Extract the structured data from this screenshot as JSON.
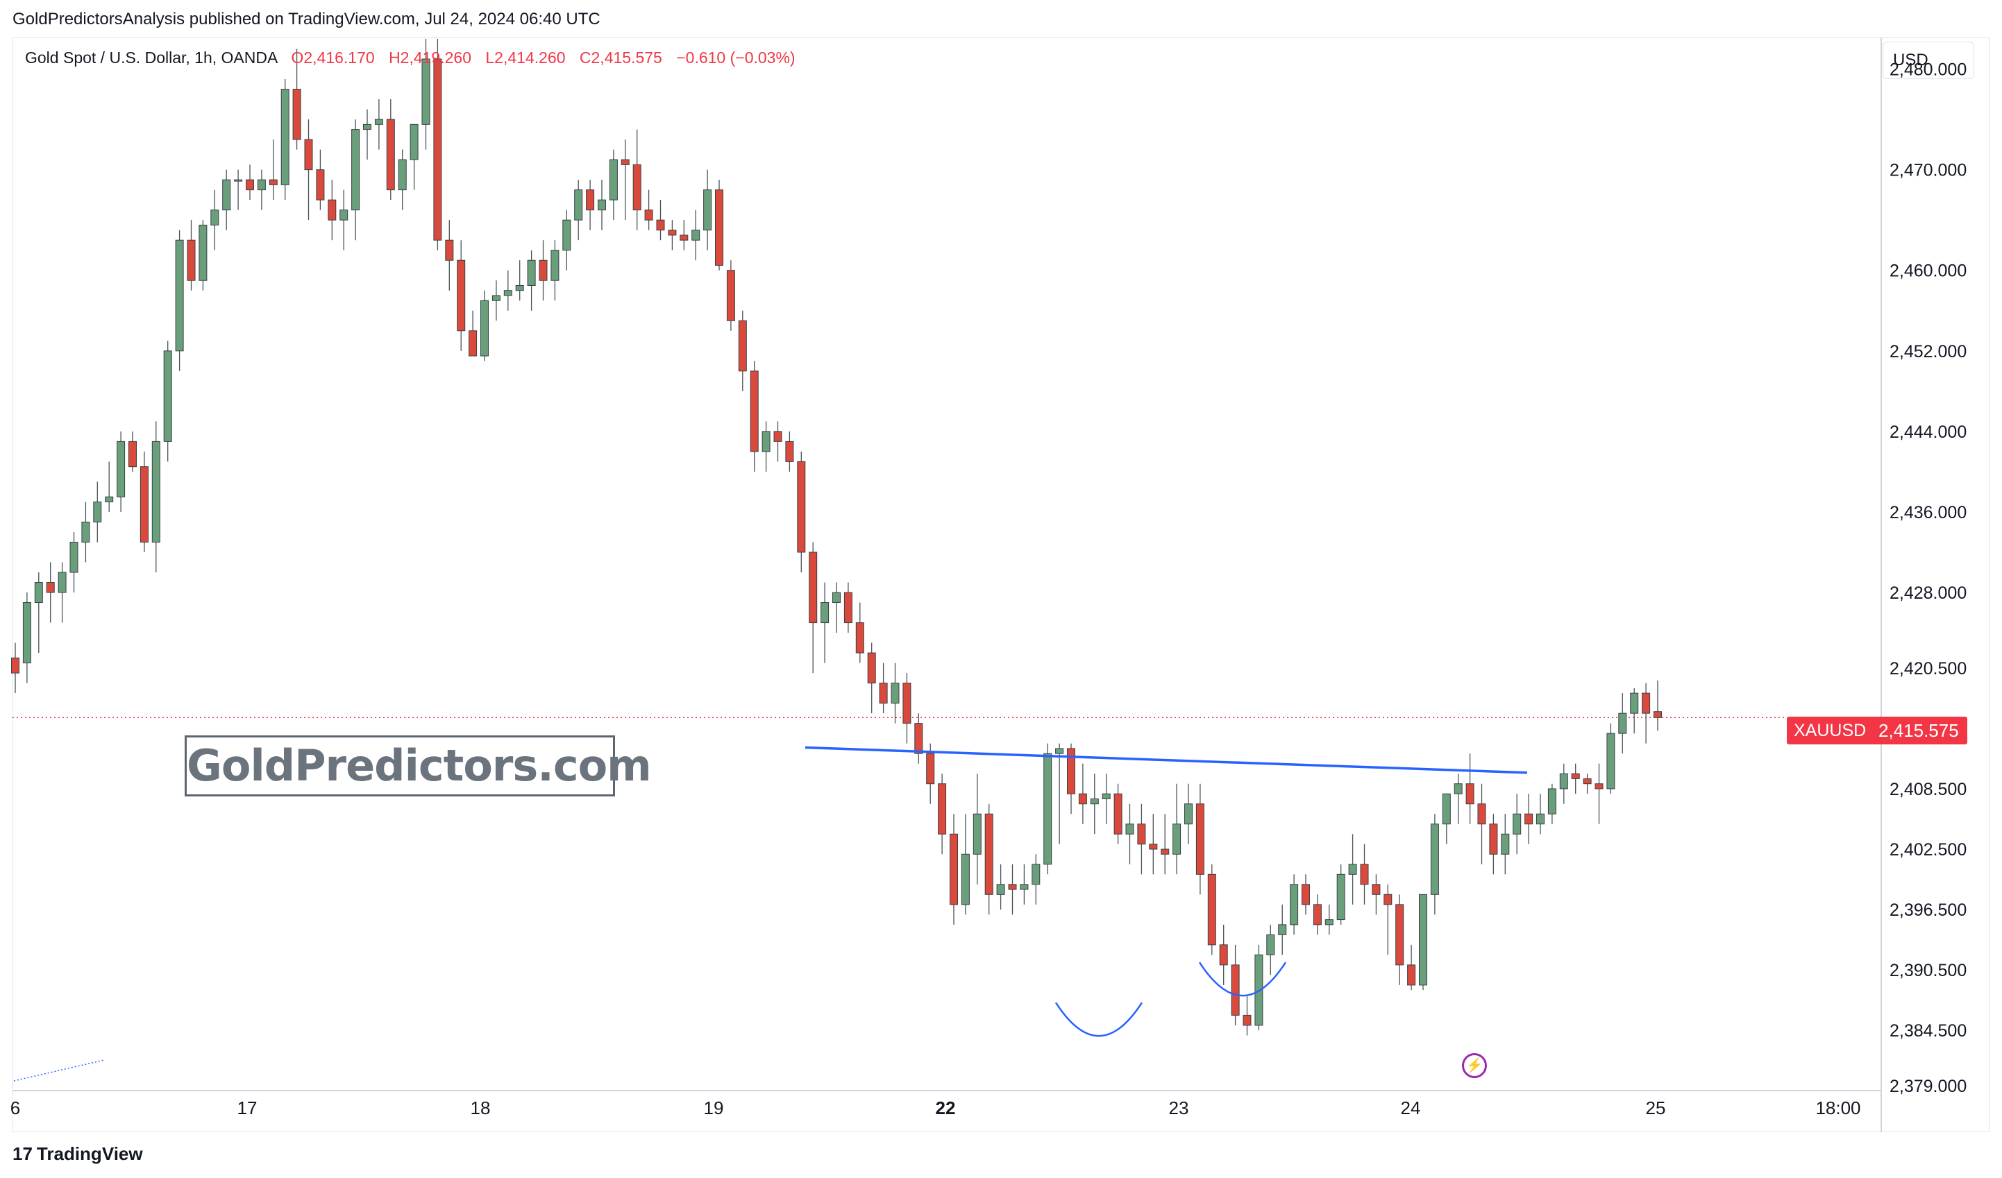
{
  "header": {
    "published": "GoldPredictorsAnalysis published on TradingView.com, Jul 24, 2024 06:40 UTC"
  },
  "legend": {
    "symbol": "Gold Spot / U.S. Dollar, 1h, OANDA",
    "open": "O2,416.170",
    "high": "H2,419.260",
    "low": "L2,414.260",
    "close": "C2,415.575",
    "change": "−0.610 (−0.03%)"
  },
  "watermark": "GoldPredictors.com",
  "currency": "USD",
  "price_label": {
    "symbol": "XAUUSD",
    "price": "2,415.575"
  },
  "footer": {
    "brand": "TradingView",
    "logo_glyph": "17"
  },
  "colors": {
    "up": "#6a9f7c",
    "down": "#d94a3d",
    "neckline": "#2962ff",
    "price_line": "#f23645",
    "signal": "#9c27b0"
  },
  "chart_data": {
    "type": "candlestick",
    "instrument": "XAUUSD",
    "timeframe": "1h",
    "y_ticks": [
      "2,480.000",
      "2,470.000",
      "2,460.000",
      "2,452.000",
      "2,444.000",
      "2,436.000",
      "2,428.000",
      "2,420.500",
      "2,408.500",
      "2,402.500",
      "2,396.500",
      "2,390.500",
      "2,384.500",
      "2,379.000"
    ],
    "y_tick_values": [
      2480,
      2470,
      2460,
      2452,
      2444,
      2436,
      2428,
      2420.5,
      2408.5,
      2402.5,
      2396.5,
      2390.5,
      2384.5,
      2379
    ],
    "x_ticks": [
      "6",
      "17",
      "18",
      "19",
      "22",
      "23",
      "24",
      "25",
      "18:00"
    ],
    "x_tick_bold": "22",
    "ylim": [
      2379,
      2483
    ],
    "current_price": 2415.575,
    "neckline": {
      "start": [
        0,
        2412.6
      ],
      "end": [
        91,
        2410.1
      ]
    },
    "shoulders": [
      {
        "center": 48.5,
        "low": 2384.5
      },
      {
        "center": 65.5,
        "low": 2388.5
      }
    ],
    "candles": [
      [
        2421.5,
        2423.0,
        2418.0,
        2420.0
      ],
      [
        2421.0,
        2428.0,
        2419.0,
        2427.0
      ],
      [
        2427.0,
        2430.0,
        2422.0,
        2429.0
      ],
      [
        2429.0,
        2431.0,
        2425.0,
        2428.0
      ],
      [
        2428.0,
        2431.0,
        2425.0,
        2430.0
      ],
      [
        2430.0,
        2434.0,
        2428.0,
        2433.0
      ],
      [
        2433.0,
        2437.0,
        2431.0,
        2435.0
      ],
      [
        2435.0,
        2439.0,
        2433.0,
        2437.0
      ],
      [
        2437.0,
        2441.0,
        2436.0,
        2437.5
      ],
      [
        2437.5,
        2444.0,
        2436.0,
        2443.0
      ],
      [
        2443.0,
        2444.0,
        2440.0,
        2440.5
      ],
      [
        2440.5,
        2442.0,
        2432.0,
        2433.0
      ],
      [
        2433.0,
        2445.0,
        2430.0,
        2443.0
      ],
      [
        2443.0,
        2453.0,
        2441.0,
        2452.0
      ],
      [
        2452.0,
        2464.0,
        2450.0,
        2463.0
      ],
      [
        2463.0,
        2465.0,
        2458.0,
        2459.0
      ],
      [
        2459.0,
        2465.0,
        2458.0,
        2464.5
      ],
      [
        2464.5,
        2468.0,
        2462.0,
        2466.0
      ],
      [
        2466.0,
        2470.0,
        2464.0,
        2469.0
      ],
      [
        2469.0,
        2470.0,
        2466.0,
        2469.0
      ],
      [
        2469.0,
        2470.5,
        2467.0,
        2468.0
      ],
      [
        2468.0,
        2470.0,
        2466.0,
        2469.0
      ],
      [
        2469.0,
        2473.0,
        2467.0,
        2468.5
      ],
      [
        2468.5,
        2479.0,
        2467.0,
        2478.0
      ],
      [
        2478.0,
        2482.0,
        2472.0,
        2473.0
      ],
      [
        2473.0,
        2475.0,
        2465.0,
        2470.0
      ],
      [
        2470.0,
        2472.0,
        2466.0,
        2467.0
      ],
      [
        2467.0,
        2469.0,
        2463.0,
        2465.0
      ],
      [
        2465.0,
        2468.0,
        2462.0,
        2466.0
      ],
      [
        2466.0,
        2475.0,
        2463.0,
        2474.0
      ],
      [
        2474.0,
        2476.0,
        2471.0,
        2474.5
      ],
      [
        2474.5,
        2477.0,
        2472.0,
        2475.0
      ],
      [
        2475.0,
        2477.0,
        2467.0,
        2468.0
      ],
      [
        2468.0,
        2472.0,
        2466.0,
        2471.0
      ],
      [
        2471.0,
        2474.0,
        2468.0,
        2474.5
      ],
      [
        2474.5,
        2483.0,
        2472.0,
        2481.0
      ],
      [
        2481.0,
        2483.0,
        2462.0,
        2463.0
      ],
      [
        2463.0,
        2465.0,
        2458.0,
        2461.0
      ],
      [
        2461.0,
        2463.0,
        2452.0,
        2454.0
      ],
      [
        2454.0,
        2456.0,
        2452.5,
        2451.5
      ],
      [
        2451.5,
        2458.0,
        2451.0,
        2457.0
      ],
      [
        2457.0,
        2459.0,
        2455.0,
        2457.5
      ],
      [
        2457.5,
        2460.0,
        2456.0,
        2458.0
      ],
      [
        2458.0,
        2461.0,
        2457.0,
        2458.5
      ],
      [
        2458.5,
        2462.0,
        2456.0,
        2461.0
      ],
      [
        2461.0,
        2463.0,
        2457.0,
        2459.0
      ],
      [
        2459.0,
        2463.0,
        2457.0,
        2462.0
      ],
      [
        2462.0,
        2466.0,
        2460.0,
        2465.0
      ],
      [
        2465.0,
        2469.0,
        2463.0,
        2468.0
      ],
      [
        2468.0,
        2469.0,
        2464.0,
        2466.0
      ],
      [
        2466.0,
        2469.0,
        2464.0,
        2467.0
      ],
      [
        2467.0,
        2472.0,
        2465.0,
        2471.0
      ],
      [
        2471.0,
        2473.0,
        2465.0,
        2470.5
      ],
      [
        2470.5,
        2474.0,
        2464.0,
        2466.0
      ],
      [
        2466.0,
        2468.0,
        2464.0,
        2465.0
      ],
      [
        2465.0,
        2467.0,
        2463.0,
        2464.0
      ],
      [
        2464.0,
        2465.0,
        2462.0,
        2463.5
      ],
      [
        2463.5,
        2465.0,
        2462.0,
        2463.0
      ],
      [
        2463.0,
        2466.0,
        2461.0,
        2464.0
      ],
      [
        2464.0,
        2470.0,
        2462.0,
        2468.0
      ],
      [
        2468.0,
        2469.0,
        2460.0,
        2460.5
      ],
      [
        2460.0,
        2461.0,
        2454.0,
        2455.0
      ],
      [
        2455.0,
        2456.0,
        2448.0,
        2450.0
      ],
      [
        2450.0,
        2451.0,
        2440.0,
        2442.0
      ],
      [
        2442.0,
        2445.0,
        2440.0,
        2444.0
      ],
      [
        2444.0,
        2445.0,
        2441.0,
        2443.0
      ],
      [
        2443.0,
        2444.0,
        2440.0,
        2441.0
      ],
      [
        2441.0,
        2442.0,
        2430.0,
        2432.0
      ],
      [
        2432.0,
        2433.0,
        2420.0,
        2425.0
      ],
      [
        2425.0,
        2429.0,
        2421.0,
        2427.0
      ],
      [
        2427.0,
        2429.0,
        2424.0,
        2428.0
      ],
      [
        2428.0,
        2429.0,
        2424.0,
        2425.0
      ],
      [
        2425.0,
        2427.0,
        2421.0,
        2422.0
      ],
      [
        2422.0,
        2423.0,
        2416.0,
        2419.0
      ],
      [
        2419.0,
        2421.0,
        2416.0,
        2417.0
      ],
      [
        2417.0,
        2421.0,
        2415.0,
        2419.0
      ],
      [
        2419.0,
        2420.0,
        2413.0,
        2415.0
      ],
      [
        2415.0,
        2416.0,
        2411.0,
        2412.0
      ],
      [
        2412.0,
        2413.0,
        2407.0,
        2409.0
      ],
      [
        2409.0,
        2410.0,
        2402.0,
        2404.0
      ],
      [
        2404.0,
        2406.0,
        2395.0,
        2397.0
      ],
      [
        2397.0,
        2406.0,
        2396.0,
        2402.0
      ],
      [
        2402.0,
        2410.0,
        2399.0,
        2406.0
      ],
      [
        2406.0,
        2407.0,
        2396.0,
        2398.0
      ],
      [
        2398.0,
        2401.0,
        2396.5,
        2399.0
      ],
      [
        2399.0,
        2401.0,
        2396.0,
        2398.5
      ],
      [
        2398.5,
        2401.0,
        2397.0,
        2399.0
      ],
      [
        2399.0,
        2402.0,
        2397.0,
        2401.0
      ],
      [
        2401.0,
        2413.0,
        2400.0,
        2412.0
      ],
      [
        2412.0,
        2413.0,
        2403.0,
        2412.5
      ],
      [
        2412.5,
        2413.0,
        2406.0,
        2408.0
      ],
      [
        2408.0,
        2411.0,
        2405.0,
        2407.0
      ],
      [
        2407.0,
        2410.0,
        2404.0,
        2407.5
      ],
      [
        2407.5,
        2410.0,
        2405.0,
        2408.0
      ],
      [
        2408.0,
        2409.0,
        2403.0,
        2404.0
      ],
      [
        2404.0,
        2407.0,
        2401.0,
        2405.0
      ],
      [
        2405.0,
        2407.0,
        2400.0,
        2403.0
      ],
      [
        2403.0,
        2406.0,
        2400.0,
        2402.5
      ],
      [
        2402.5,
        2406.0,
        2400.0,
        2402.0
      ],
      [
        2402.0,
        2409.0,
        2400.0,
        2405.0
      ],
      [
        2405.0,
        2409.0,
        2403.0,
        2407.0
      ],
      [
        2407.0,
        2409.0,
        2398.0,
        2400.0
      ],
      [
        2400.0,
        2401.0,
        2392.0,
        2393.0
      ],
      [
        2393.0,
        2395.0,
        2389.0,
        2391.0
      ],
      [
        2391.0,
        2393.0,
        2385.0,
        2386.0
      ],
      [
        2386.0,
        2388.0,
        2384.0,
        2385.0
      ],
      [
        2385.0,
        2393.0,
        2384.5,
        2392.0
      ],
      [
        2392.0,
        2395.0,
        2390.0,
        2394.0
      ],
      [
        2394.0,
        2397.0,
        2392.0,
        2395.0
      ],
      [
        2395.0,
        2400.0,
        2394.0,
        2399.0
      ],
      [
        2399.0,
        2400.0,
        2396.0,
        2397.0
      ],
      [
        2397.0,
        2398.0,
        2394.0,
        2395.0
      ],
      [
        2395.0,
        2397.0,
        2394.0,
        2395.5
      ],
      [
        2395.5,
        2401.0,
        2395.0,
        2400.0
      ],
      [
        2400.0,
        2404.0,
        2397.0,
        2401.0
      ],
      [
        2401.0,
        2403.0,
        2397.0,
        2399.0
      ],
      [
        2399.0,
        2400.0,
        2396.0,
        2398.0
      ],
      [
        2398.0,
        2399.0,
        2392.0,
        2397.0
      ],
      [
        2397.0,
        2398.0,
        2389.0,
        2391.0
      ],
      [
        2391.0,
        2393.0,
        2388.5,
        2389.0
      ],
      [
        2389.0,
        2398.0,
        2388.5,
        2398.0
      ],
      [
        2398.0,
        2406.0,
        2396.0,
        2405.0
      ],
      [
        2405.0,
        2408.0,
        2403.0,
        2408.0
      ],
      [
        2408.0,
        2410.0,
        2405.0,
        2409.0
      ],
      [
        2409.0,
        2412.0,
        2405.0,
        2407.0
      ],
      [
        2407.0,
        2409.0,
        2401.0,
        2405.0
      ],
      [
        2405.0,
        2406.0,
        2400.0,
        2402.0
      ],
      [
        2402.0,
        2406.0,
        2400.0,
        2404.0
      ],
      [
        2404.0,
        2408.0,
        2402.0,
        2406.0
      ],
      [
        2406.0,
        2408.0,
        2403.0,
        2405.0
      ],
      [
        2405.0,
        2408.0,
        2404.0,
        2406.0
      ],
      [
        2406.0,
        2409.0,
        2405.0,
        2408.5
      ],
      [
        2408.5,
        2411.0,
        2407.0,
        2410.0
      ],
      [
        2410.0,
        2411.0,
        2408.0,
        2409.5
      ],
      [
        2409.5,
        2410.0,
        2408.0,
        2409.0
      ],
      [
        2409.0,
        2411.0,
        2405.0,
        2408.5
      ],
      [
        2408.5,
        2415.0,
        2408.0,
        2414.0
      ],
      [
        2414.0,
        2418.0,
        2412.0,
        2416.0
      ],
      [
        2416.0,
        2418.5,
        2414.0,
        2418.0
      ],
      [
        2418.0,
        2419.0,
        2413.0,
        2416.0
      ],
      [
        2416.17,
        2419.26,
        2414.26,
        2415.575
      ]
    ]
  }
}
